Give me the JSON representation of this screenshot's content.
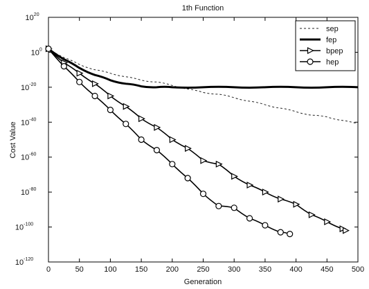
{
  "chart_data": {
    "type": "line",
    "title": "1th Function",
    "xlabel": "Generation",
    "ylabel": "Cost Value",
    "xlim": [
      0,
      500
    ],
    "ylim_exp": [
      -120,
      20
    ],
    "y_scale": "log",
    "y_tick_base": "10",
    "x_ticks": [
      "0",
      "50",
      "100",
      "150",
      "200",
      "250",
      "300",
      "350",
      "400",
      "450",
      "500"
    ],
    "y_tick_exponents": [
      "20",
      "0",
      "-20",
      "-40",
      "-60",
      "-80",
      "-100",
      "-120"
    ],
    "grid": false,
    "legend_position": "top-right",
    "series": [
      {
        "name": "sep",
        "style": "dashed",
        "marker": "none",
        "x": [
          0,
          25,
          50,
          75,
          100,
          125,
          150,
          175,
          200,
          225,
          250,
          275,
          300,
          325,
          350,
          375,
          400,
          425,
          450,
          475,
          500
        ],
        "log10_y": [
          2,
          -3,
          -7,
          -10,
          -12,
          -14,
          -16,
          -17,
          -19,
          -21,
          -23,
          -24,
          -26,
          -28,
          -30,
          -32,
          -34,
          -36,
          -37,
          -39,
          -41
        ]
      },
      {
        "name": "fep",
        "style": "solid-thick",
        "marker": "none",
        "x": [
          0,
          25,
          50,
          75,
          100,
          125,
          150,
          175,
          200,
          250,
          300,
          350,
          400,
          450,
          500
        ],
        "log10_y": [
          2,
          -4,
          -9,
          -13,
          -16,
          -18,
          -19.5,
          -20,
          -20,
          -20,
          -20,
          -20,
          -20,
          -20,
          -20
        ]
      },
      {
        "name": "bpep",
        "style": "solid",
        "marker": "triangle",
        "x": [
          0,
          25,
          50,
          75,
          100,
          125,
          150,
          175,
          200,
          225,
          250,
          275,
          300,
          325,
          350,
          375,
          400,
          425,
          450,
          475,
          480
        ],
        "log10_y": [
          2,
          -6,
          -12,
          -18,
          -25,
          -31,
          -38,
          -43,
          -50,
          -55,
          -62,
          -64,
          -71,
          -76,
          -80,
          -84,
          -87,
          -93,
          -97,
          -101,
          -102
        ]
      },
      {
        "name": "hep",
        "style": "solid",
        "marker": "circle",
        "x": [
          0,
          25,
          50,
          75,
          100,
          125,
          150,
          175,
          200,
          225,
          250,
          275,
          300,
          325,
          350,
          375,
          390
        ],
        "log10_y": [
          2,
          -8,
          -17,
          -25,
          -33,
          -41,
          -50,
          -56,
          -64,
          -72,
          -81,
          -88,
          -89,
          -95,
          -99,
          -103,
          -104
        ]
      }
    ]
  }
}
